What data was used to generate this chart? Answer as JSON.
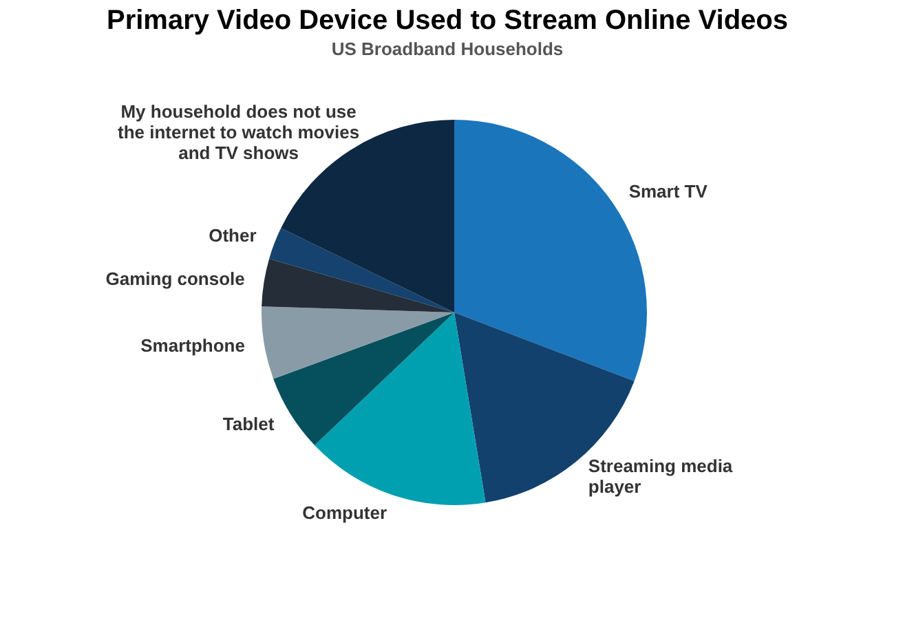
{
  "chart_data": {
    "type": "pie",
    "title": "Primary Video Device Used to Stream Online Videos",
    "subtitle": "US Broadband Households",
    "categories": [
      "Smart TV",
      "Streaming media player",
      "Computer",
      "Tablet",
      "Smartphone",
      "Gaming console",
      "Other",
      "My household does not use the internet to watch movies and TV shows"
    ],
    "values": [
      30.8,
      16.6,
      15.5,
      6.5,
      6.1,
      4,
      2.7,
      17.8
    ],
    "colors": [
      "#1b75bb",
      "#12416e",
      "#00a0b0",
      "#06505e",
      "#8a9ba8",
      "#252d38",
      "#15426e",
      "#0c2843"
    ]
  }
}
